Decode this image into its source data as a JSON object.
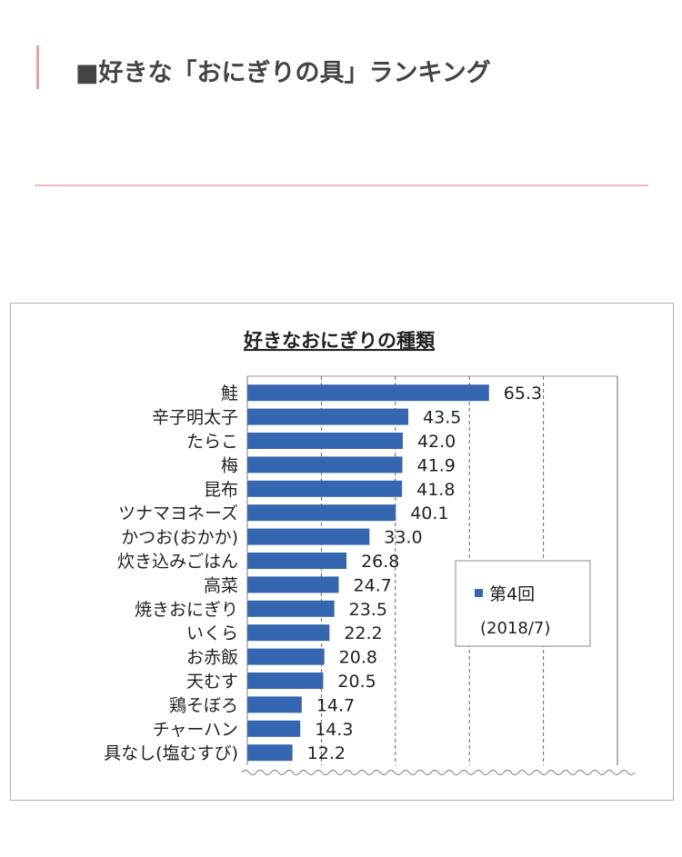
{
  "heading": {
    "text": "■好きな「おにぎりの具」ランキング"
  },
  "chart_data": {
    "type": "bar",
    "orientation": "horizontal",
    "title": "好きなおにぎりの種類",
    "categories": [
      "鮭",
      "辛子明太子",
      "たらこ",
      "梅",
      "昆布",
      "ツナマヨネーズ",
      "かつお(おかか)",
      "炊き込みごはん",
      "高菜",
      "焼きおにぎり",
      "いくら",
      "お赤飯",
      "天むす",
      "鶏そぼろ",
      "チャーハン",
      "具なし(塩むすび)"
    ],
    "series": [
      {
        "name": "第4回",
        "values": [
          65.3,
          43.5,
          42.0,
          41.9,
          41.8,
          40.1,
          33.0,
          26.8,
          24.7,
          23.5,
          22.2,
          20.8,
          20.5,
          14.7,
          14.3,
          12.2
        ]
      }
    ],
    "value_labels": [
      "65.3",
      "43.5",
      "42.0",
      "41.9",
      "41.8",
      "40.1",
      "33.0",
      "26.8",
      "24.7",
      "23.5",
      "22.2",
      "20.8",
      "20.5",
      "14.7",
      "14.3",
      "12.2"
    ],
    "legend": {
      "entry": "第4回",
      "note": "(2018/7)",
      "position": "right"
    },
    "xlim": [
      0,
      100
    ],
    "gridlines": [
      20,
      40,
      60,
      80,
      100
    ],
    "grid": true,
    "bar_color": "#3566b0"
  }
}
